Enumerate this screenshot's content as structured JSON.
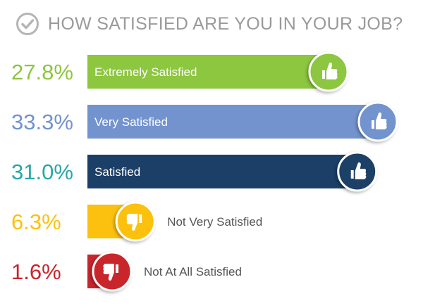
{
  "chart_data": {
    "type": "bar",
    "title": "HOW SATISFIED ARE YOU IN YOUR JOB?",
    "categories": [
      "Extremely Satisfied",
      "Very Satisfied",
      "Satisfied",
      "Not Very Satisfied",
      "Not At All Satisfied"
    ],
    "values": [
      27.8,
      33.3,
      31.0,
      6.3,
      1.6
    ],
    "value_labels": [
      "27.8%",
      "33.3%",
      "31.0%",
      "6.3%",
      "1.6%"
    ],
    "sentiment": [
      "positive",
      "positive",
      "positive",
      "negative",
      "negative"
    ],
    "colors": [
      "#8dc63f",
      "#7393cf",
      "#1b3f66",
      "#fcc10f",
      "#c8252c"
    ],
    "value_label_colors": [
      "#8dc63f",
      "#7393cf",
      "#2aa6a6",
      "#fcc10f",
      "#c8252c"
    ],
    "bar_label_colors": [
      "#ffffff",
      "#ffffff",
      "#ffffff",
      "#555555",
      "#555555"
    ],
    "icons": [
      "thumbs-up-icon",
      "thumbs-down-icon"
    ],
    "xlabel": "",
    "ylabel": "",
    "xlim": [
      0,
      33.3
    ],
    "grid": false,
    "legend": "none"
  }
}
